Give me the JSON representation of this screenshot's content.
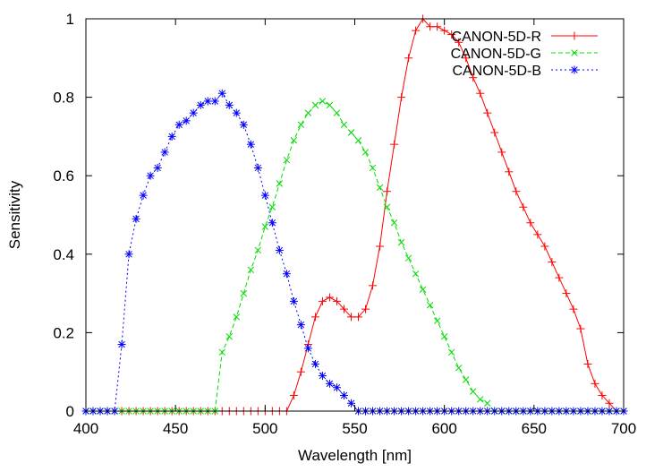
{
  "chart_data": {
    "type": "line",
    "title": "",
    "xlabel": "Wavelength [nm]",
    "ylabel": "Sensitivity",
    "xlim": [
      400,
      700
    ],
    "ylim": [
      0,
      1
    ],
    "x_ticks": [
      "400",
      "450",
      "500",
      "550",
      "600",
      "650",
      "700"
    ],
    "y_ticks": [
      "0",
      "0.2",
      "0.4",
      "0.6",
      "0.8",
      "1"
    ],
    "grid": false,
    "legend": "top-right",
    "x": [
      400,
      404,
      408,
      412,
      416,
      420,
      424,
      428,
      432,
      436,
      440,
      444,
      448,
      452,
      456,
      460,
      464,
      468,
      472,
      476,
      480,
      484,
      488,
      492,
      496,
      500,
      504,
      508,
      512,
      516,
      520,
      524,
      528,
      532,
      536,
      540,
      544,
      548,
      552,
      556,
      560,
      564,
      568,
      572,
      576,
      580,
      584,
      588,
      592,
      596,
      600,
      604,
      608,
      612,
      616,
      620,
      624,
      628,
      632,
      636,
      640,
      644,
      648,
      652,
      656,
      660,
      664,
      668,
      672,
      676,
      680,
      684,
      688,
      692,
      696,
      700
    ],
    "series": [
      {
        "name": "CANON-5D-R",
        "color": "#ff0000",
        "marker": "+",
        "dash": "solid",
        "values": [
          0,
          0,
          0,
          0,
          0,
          0,
          0,
          0,
          0,
          0,
          0,
          0,
          0,
          0,
          0,
          0,
          0,
          0,
          0,
          0,
          0,
          0,
          0,
          0,
          0,
          0,
          0,
          0,
          0,
          0.04,
          0.1,
          0.17,
          0.24,
          0.28,
          0.29,
          0.28,
          0.26,
          0.24,
          0.24,
          0.26,
          0.32,
          0.42,
          0.56,
          0.68,
          0.8,
          0.9,
          0.97,
          1.0,
          0.98,
          0.98,
          0.97,
          0.96,
          0.94,
          0.9,
          0.85,
          0.81,
          0.76,
          0.71,
          0.66,
          0.61,
          0.56,
          0.52,
          0.48,
          0.45,
          0.42,
          0.38,
          0.34,
          0.3,
          0.26,
          0.21,
          0.12,
          0.07,
          0.04,
          0.02,
          0,
          0
        ]
      },
      {
        "name": "CANON-5D-G",
        "color": "#00dd00",
        "marker": "x",
        "dash": "dashed",
        "values": [
          0,
          0,
          0,
          0,
          0,
          0,
          0,
          0,
          0,
          0,
          0,
          0,
          0,
          0,
          0,
          0,
          0,
          0,
          0,
          0.15,
          0.19,
          0.24,
          0.3,
          0.36,
          0.41,
          0.47,
          0.52,
          0.58,
          0.64,
          0.69,
          0.73,
          0.76,
          0.78,
          0.79,
          0.78,
          0.76,
          0.73,
          0.71,
          0.69,
          0.66,
          0.62,
          0.57,
          0.52,
          0.48,
          0.43,
          0.39,
          0.35,
          0.31,
          0.27,
          0.23,
          0.19,
          0.15,
          0.11,
          0.08,
          0.05,
          0.03,
          0.02,
          0,
          0,
          0,
          0,
          0,
          0,
          0,
          0,
          0,
          0,
          0,
          0,
          0,
          0,
          0,
          0,
          0,
          0,
          0
        ]
      },
      {
        "name": "CANON-5D-B",
        "color": "#0000ff",
        "marker": "*",
        "dash": "dotted",
        "values": [
          0,
          0,
          0,
          0,
          0,
          0.17,
          0.4,
          0.49,
          0.55,
          0.6,
          0.62,
          0.66,
          0.7,
          0.73,
          0.74,
          0.76,
          0.78,
          0.79,
          0.79,
          0.81,
          0.78,
          0.76,
          0.73,
          0.68,
          0.62,
          0.55,
          0.48,
          0.41,
          0.35,
          0.28,
          0.22,
          0.16,
          0.12,
          0.09,
          0.07,
          0.06,
          0.04,
          0.02,
          0,
          0,
          0,
          0,
          0,
          0,
          0,
          0,
          0,
          0,
          0,
          0,
          0,
          0,
          0,
          0,
          0,
          0,
          0,
          0,
          0,
          0,
          0,
          0,
          0,
          0,
          0,
          0,
          0,
          0,
          0,
          0,
          0,
          0,
          0,
          0,
          0,
          0
        ]
      }
    ]
  }
}
